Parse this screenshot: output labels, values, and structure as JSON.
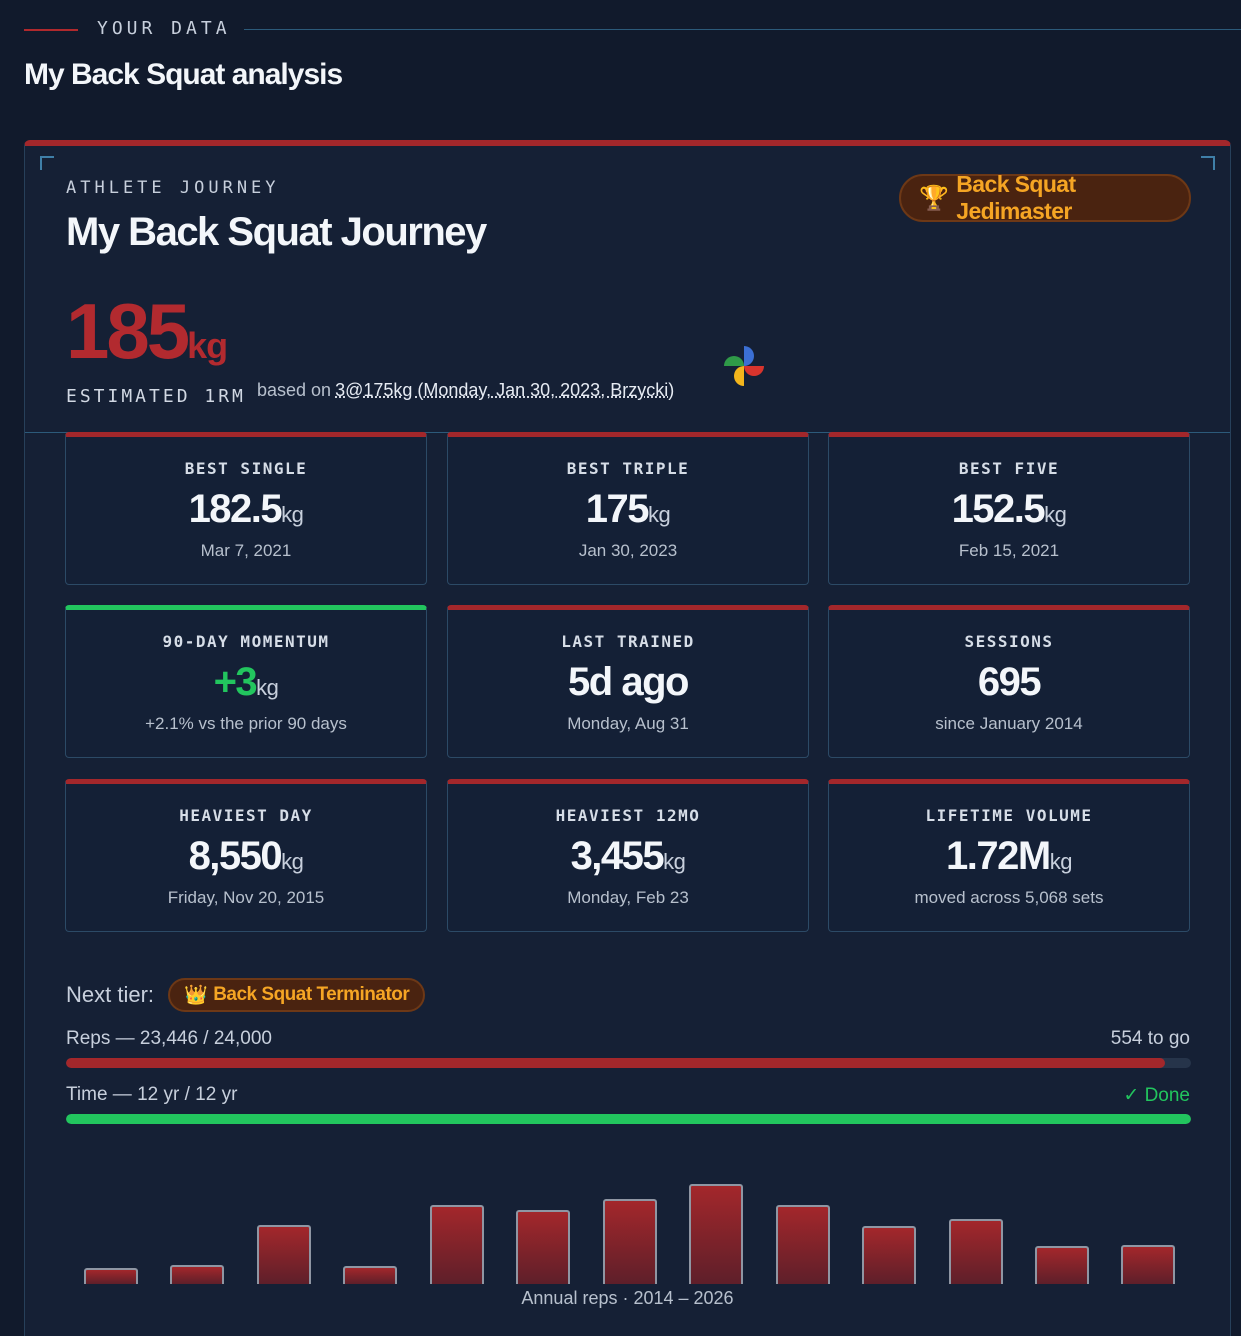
{
  "section": {
    "kicker": "YOUR DATA",
    "title": "My Back Squat analysis"
  },
  "journey": {
    "kicker": "ATHLETE JOURNEY",
    "title": "My Back Squat Journey",
    "badge": {
      "icon": "🏆",
      "label": "Back Squat Jedimaster"
    },
    "estimate": {
      "value": "185",
      "unit": "kg",
      "label": "ESTIMATED 1RM"
    },
    "based_on": {
      "prefix": "based on",
      "link": "3@175kg (Monday, Jan 30, 2023, Brzycki)"
    }
  },
  "tiles": [
    {
      "label": "BEST SINGLE",
      "value": "182.5",
      "unit": "kg",
      "sub": "Mar 7, 2021"
    },
    {
      "label": "BEST TRIPLE",
      "value": "175",
      "unit": "kg",
      "sub": "Jan 30, 2023"
    },
    {
      "label": "BEST FIVE",
      "value": "152.5",
      "unit": "kg",
      "sub": "Feb 15, 2021"
    },
    {
      "label": "90-DAY MOMENTUM",
      "value": "+3",
      "unit": "kg",
      "sub": "+2.1% vs the prior 90 days"
    },
    {
      "label": "LAST TRAINED",
      "value": "5d ago",
      "unit": "",
      "sub": "Monday, Aug 31"
    },
    {
      "label": "SESSIONS",
      "value": "695",
      "unit": "",
      "sub": "since January 2014"
    },
    {
      "label": "HEAVIEST DAY",
      "value": "8,550",
      "unit": "kg",
      "sub": "Friday, Nov 20, 2015"
    },
    {
      "label": "HEAVIEST 12MO",
      "value": "3,455",
      "unit": "kg",
      "sub": "Monday, Feb 23"
    },
    {
      "label": "LIFETIME VOLUME",
      "value": "1.72M",
      "unit": "kg",
      "sub": "moved across 5,068 sets"
    }
  ],
  "next_tier": {
    "label": "Next tier:",
    "badge": {
      "icon": "👑",
      "label": "Back Squat Terminator"
    },
    "reps": {
      "label": "Reps — 23,446 / 24,000",
      "right": "554 to go",
      "fraction": 0.977,
      "color": "#a3272b"
    },
    "time": {
      "label": "Time — 12 yr / 12 yr",
      "right": "✓ Done",
      "fraction": 1.0,
      "color": "#22c55e"
    }
  },
  "annual_reps": {
    "caption": "Annual reps · 2014 – 2026",
    "relative_heights": [
      0.16,
      0.19,
      0.59,
      0.18,
      0.79,
      0.74,
      0.85,
      1.0,
      0.79,
      0.58,
      0.65,
      0.38,
      0.39
    ]
  },
  "colors": {
    "accent_red": "#a3272b",
    "positive_green": "#22c55e",
    "badge_orange": "#f5a524"
  }
}
